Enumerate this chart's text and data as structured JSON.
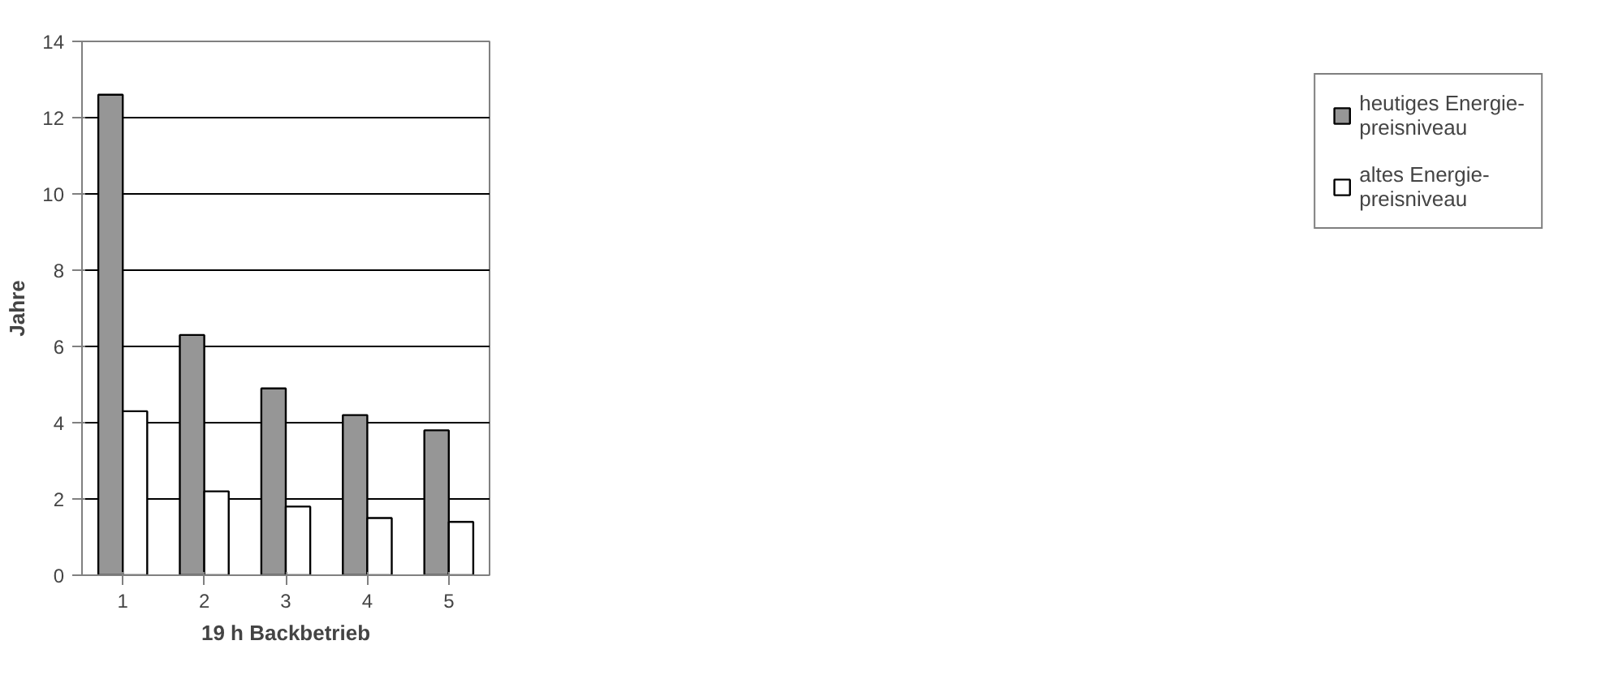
{
  "chart_data": {
    "type": "bar",
    "xlabel": "19 h Backbetrieb",
    "ylabel": "Jahre",
    "categories": [
      "1",
      "2",
      "3",
      "4",
      "5"
    ],
    "series": [
      {
        "name": "heutiges Energie-preisniveau",
        "color": "#969696",
        "values": [
          12.6,
          6.3,
          4.9,
          4.2,
          3.8
        ]
      },
      {
        "name": "altes Energie-preisniveau",
        "color": "#ffffff",
        "values": [
          4.3,
          2.2,
          1.8,
          1.5,
          1.4
        ]
      }
    ],
    "ylim": [
      0,
      14
    ],
    "yticks": [
      0,
      2,
      4,
      6,
      8,
      10,
      12,
      14
    ],
    "grid": "y",
    "legend": "right"
  }
}
